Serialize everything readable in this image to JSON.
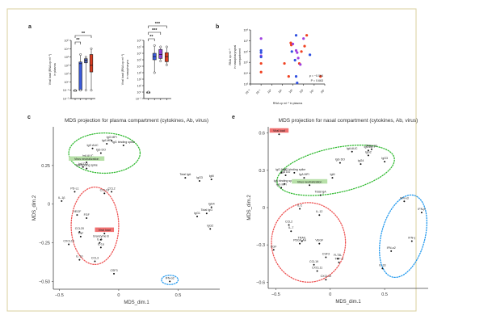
{
  "figure": {
    "border_color": "#d8cf9c",
    "panels": {
      "a": {
        "label": "a"
      },
      "b": {
        "label": "b"
      },
      "c": {
        "label": "c"
      },
      "e": {
        "label": "e"
      }
    }
  },
  "chart_data": [
    {
      "id": "a1",
      "type": "box",
      "ylabel": "Viral load (RNA cp ml⁻¹) in plasma",
      "yscale": "log10",
      "ylim_exp": [
        -2,
        5
      ],
      "ytick_labels": [
        "10⁻²",
        "10⁻¹",
        "10⁰",
        "10¹",
        "10²",
        "10³",
        "10⁴",
        "10⁵"
      ],
      "groups": [
        {
          "color": "#888888",
          "median_exp": -1,
          "q1_exp": -1,
          "q3_exp": -1,
          "min_exp": -1,
          "max_exp": -1
        },
        {
          "color": "#3b5bdb",
          "median_exp": 2.2,
          "q1_exp": -1,
          "q3_exp": 2.4,
          "min_exp": -1,
          "max_exp": 3.3
        },
        {
          "color": "#4a5aa8",
          "median_exp": 2.6,
          "q1_exp": 2.3,
          "q3_exp": 2.8,
          "min_exp": -1,
          "max_exp": 3
        },
        {
          "color": "#d93b1f",
          "median_exp": 2,
          "q1_exp": 1.2,
          "q3_exp": 3.3,
          "min_exp": -1,
          "max_exp": 4
        }
      ],
      "significance": [
        {
          "from": 0,
          "to": 1,
          "label": "**"
        },
        {
          "from": 0,
          "to": 3,
          "label": "**"
        }
      ]
    },
    {
      "id": "a2",
      "type": "box",
      "ylabel": "Viral load (RNA cp ml⁻¹) in nasopharynx",
      "yscale": "log10",
      "ylim_exp": [
        -1,
        8
      ],
      "ytick_labels": [
        "10⁻¹",
        "10⁰",
        "10¹",
        "10²",
        "10³",
        "10⁴",
        "10⁵",
        "10⁶",
        "10⁷",
        "10⁸"
      ],
      "groups": [
        {
          "color": "#888888",
          "median_exp": 0,
          "q1_exp": 0,
          "q3_exp": 0,
          "min_exp": 0,
          "max_exp": 0
        },
        {
          "color": "#3b5bdb",
          "median_exp": 5.5,
          "q1_exp": 5,
          "q3_exp": 6,
          "min_exp": 3,
          "max_exp": 7.2
        },
        {
          "color": "#8a3fd9",
          "median_exp": 5.8,
          "q1_exp": 5.2,
          "q3_exp": 6.6,
          "min_exp": 4.8,
          "max_exp": 7
        },
        {
          "color": "#d93b1f",
          "median_exp": 5.5,
          "q1_exp": 4.7,
          "q3_exp": 6.1,
          "min_exp": 4.2,
          "max_exp": 7
        }
      ],
      "significance": [
        {
          "from": 0,
          "to": 1,
          "label": "**"
        },
        {
          "from": 0,
          "to": 2,
          "label": "***"
        },
        {
          "from": 0,
          "to": 3,
          "label": "***"
        }
      ]
    },
    {
      "id": "b",
      "type": "scatter",
      "xlabel": "RNA cp ml⁻¹ in plasma",
      "ylabel": "RNA cp ml⁻¹ in nasopharyngeal compartment",
      "xscale": "log10",
      "yscale": "log10",
      "xlim_exp": [
        -2,
        5
      ],
      "ylim_exp": [
        3,
        8
      ],
      "xtick_labels": [
        "10⁻²",
        "10⁻¹",
        "10⁰",
        "10¹",
        "10²",
        "10³",
        "10⁴",
        "10⁵"
      ],
      "ytick_labels": [
        "10³",
        "10⁴",
        "10⁵",
        "10⁶",
        "10⁷",
        "10⁸"
      ],
      "annotation": [
        "ρ = −0.094",
        "P = 0.663"
      ],
      "points": [
        {
          "x": -1,
          "y": 7.2,
          "c": "#a040e0"
        },
        {
          "x": -1,
          "y": 6.1,
          "c": "#3050e0"
        },
        {
          "x": -1,
          "y": 5.9,
          "c": "#3050e0"
        },
        {
          "x": -1,
          "y": 5.6,
          "c": "#a040e0"
        },
        {
          "x": -1,
          "y": 5.5,
          "c": "#3050e0"
        },
        {
          "x": -1,
          "y": 4.9,
          "c": "#f04020"
        },
        {
          "x": -1,
          "y": 4.1,
          "c": "#f04020"
        },
        {
          "x": 1.2,
          "y": 4.9,
          "c": "#f04020"
        },
        {
          "x": 1.6,
          "y": 3.7,
          "c": "#f04020"
        },
        {
          "x": 1.8,
          "y": 6.8,
          "c": "#f04020"
        },
        {
          "x": 1.85,
          "y": 6.6,
          "c": "#f04020"
        },
        {
          "x": 1.9,
          "y": 6.0,
          "c": "#3050e0"
        },
        {
          "x": 2.0,
          "y": 6.7,
          "c": "#a040e0"
        },
        {
          "x": 2.2,
          "y": 5.2,
          "c": "#3050e0"
        },
        {
          "x": 2.3,
          "y": 6.1,
          "c": "#a040e0"
        },
        {
          "x": 2.3,
          "y": 7.5,
          "c": "#3050e0"
        },
        {
          "x": 2.4,
          "y": 5.9,
          "c": "#a040e0"
        },
        {
          "x": 2.3,
          "y": 3.7,
          "c": "#3050e0"
        },
        {
          "x": 2.4,
          "y": 3.1,
          "c": "#3050e0"
        },
        {
          "x": 2.5,
          "y": 5.4,
          "c": "#a040e0"
        },
        {
          "x": 2.6,
          "y": 4.9,
          "c": "#f04020"
        },
        {
          "x": 2.7,
          "y": 4.8,
          "c": "#a040e0"
        },
        {
          "x": 2.8,
          "y": 6.0,
          "c": "#f04020"
        },
        {
          "x": 3.0,
          "y": 7.2,
          "c": "#a040e0"
        },
        {
          "x": 3.1,
          "y": 6.5,
          "c": "#f04020"
        },
        {
          "x": 3.3,
          "y": 7.5,
          "c": "#f04020"
        },
        {
          "x": 3.6,
          "y": 5.7,
          "c": "#3050e0"
        },
        {
          "x": 4.6,
          "y": 3.7,
          "c": "#f04020"
        }
      ]
    },
    {
      "id": "c",
      "type": "scatter",
      "title": "MDS projection for plasma compartment (cytokines, Ab, virus)",
      "xlabel": "MDS_dim.1",
      "ylabel": "MDS_dim.2",
      "xlim": [
        -0.55,
        0.85
      ],
      "ylim": [
        -0.55,
        0.5
      ],
      "xticks": [
        -0.5,
        0,
        0.5
      ],
      "xtick_labels": [
        "−0.5",
        "0",
        "0.5"
      ],
      "yticks": [
        -0.5,
        -0.25,
        0,
        0.25
      ],
      "ytick_labels": [
        "−0.50",
        "−0.25",
        "0",
        "0.25"
      ],
      "points": [
        {
          "label": "IgA MFI",
          "x": -0.1,
          "y": 0.39
        },
        {
          "label": "IgG MFI",
          "x": -0.06,
          "y": 0.41
        },
        {
          "label": "IgG binding spike",
          "x": 0.04,
          "y": 0.38
        },
        {
          "label": "IgG AUC",
          "x": -0.22,
          "y": 0.36
        },
        {
          "label": "IgG DO",
          "x": -0.15,
          "y": 0.33
        },
        {
          "label": "IgA AUC",
          "x": -0.26,
          "y": 0.29
        },
        {
          "label": "Virus neutralization",
          "x": -0.27,
          "y": 0.27,
          "highlight": "#b7e0a8"
        },
        {
          "label": "IgA DO",
          "x": -0.3,
          "y": 0.24
        },
        {
          "label": "IgA binding spike",
          "x": -0.27,
          "y": 0.23
        },
        {
          "label": "Total IgA",
          "x": 0.56,
          "y": 0.17
        },
        {
          "label": "IgG3",
          "x": 0.68,
          "y": 0.15
        },
        {
          "label": "IgM",
          "x": 0.78,
          "y": 0.16
        },
        {
          "label": "PD-L1",
          "x": -0.37,
          "y": 0.08
        },
        {
          "label": "CCL2",
          "x": -0.06,
          "y": 0.08
        },
        {
          "label": "CCL19",
          "x": -0.12,
          "y": 0.07
        },
        {
          "label": "IL-1β",
          "x": -0.48,
          "y": 0.02
        },
        {
          "label": "IgG4",
          "x": 0.78,
          "y": -0.02
        },
        {
          "label": "Total IgG",
          "x": 0.74,
          "y": -0.06
        },
        {
          "label": "IgG1",
          "x": 0.66,
          "y": -0.08
        },
        {
          "label": "VEGF",
          "x": -0.35,
          "y": -0.07
        },
        {
          "label": "FGF",
          "x": -0.27,
          "y": -0.09
        },
        {
          "label": "IgG2",
          "x": 0.77,
          "y": -0.16
        },
        {
          "label": "CCL20",
          "x": -0.33,
          "y": -0.18
        },
        {
          "label": "TNF",
          "x": -0.32,
          "y": -0.21
        },
        {
          "label": "Viral load",
          "x": -0.12,
          "y": -0.19,
          "highlight": "#f07070"
        },
        {
          "label": "Granzyme B",
          "x": -0.15,
          "y": -0.23
        },
        {
          "label": "IL-6",
          "x": -0.16,
          "y": -0.25
        },
        {
          "label": "IL-1α",
          "x": -0.15,
          "y": -0.28
        },
        {
          "label": "CXCL10",
          "x": -0.42,
          "y": -0.26
        },
        {
          "label": "IL-10",
          "x": -0.33,
          "y": -0.36
        },
        {
          "label": "CCL3",
          "x": -0.2,
          "y": -0.37
        },
        {
          "label": "CSF3",
          "x": -0.04,
          "y": -0.45
        },
        {
          "label": "IFN-α2",
          "x": 0.43,
          "y": -0.5
        }
      ],
      "ellipses": [
        {
          "color": "#33bb33",
          "cx": -0.12,
          "cy": 0.33,
          "rx": 0.3,
          "ry": 0.13
        },
        {
          "color": "#ee5555",
          "cx": -0.2,
          "cy": -0.14,
          "rx": 0.2,
          "ry": 0.25
        },
        {
          "color": "#2299ee",
          "cx": 0.43,
          "cy": -0.49,
          "rx": 0.07,
          "ry": 0.03
        }
      ]
    },
    {
      "id": "e",
      "type": "scatter",
      "title": "MDS projection for nasal compartment (cytokines, Ab, virus)",
      "xlabel": "MDS_dim.1",
      "ylabel": "MDS_dim.2",
      "xlim": [
        -0.57,
        0.9
      ],
      "ylim": [
        -0.65,
        0.65
      ],
      "xticks": [
        -0.5,
        0,
        0.5
      ],
      "xtick_labels": [
        "−0.5",
        "0",
        "0.5"
      ],
      "yticks": [
        -0.6,
        -0.3,
        0,
        0.3,
        0.6
      ],
      "ytick_labels": [
        "−0.6",
        "−0.3",
        "0",
        "0.3",
        "0.6"
      ],
      "points": [
        {
          "label": "Viral load",
          "x": -0.47,
          "y": 0.59,
          "highlight": "#f07070"
        },
        {
          "label": "IgA AUC",
          "x": 0.2,
          "y": 0.45
        },
        {
          "label": "IgG1/a",
          "x": 0.35,
          "y": 0.46
        },
        {
          "label": "Total IgG",
          "x": 0.38,
          "y": 0.47
        },
        {
          "label": "IgG2",
          "x": 0.35,
          "y": 0.42
        },
        {
          "label": "IgG DO",
          "x": 0.09,
          "y": 0.36
        },
        {
          "label": "IgG4",
          "x": 0.28,
          "y": 0.35
        },
        {
          "label": "IgG3",
          "x": 0.5,
          "y": 0.37
        },
        {
          "label": "IgG AUC",
          "x": -0.45,
          "y": 0.28
        },
        {
          "label": "IgG binding spike",
          "x": -0.33,
          "y": 0.28
        },
        {
          "label": "IgA DO",
          "x": -0.41,
          "y": 0.26
        },
        {
          "label": "IgA MFI",
          "x": -0.24,
          "y": 0.24
        },
        {
          "label": "IgM",
          "x": 0.02,
          "y": 0.24
        },
        {
          "label": "IgA binding spike",
          "x": -0.42,
          "y": 0.19
        },
        {
          "label": "Virus neutralization",
          "x": -0.19,
          "y": 0.18,
          "highlight": "#b7e0a8"
        },
        {
          "label": "IgG MFI",
          "x": -0.45,
          "y": 0.16
        },
        {
          "label": "Total IgA",
          "x": -0.09,
          "y": 0.1
        },
        {
          "label": "IFN-λ3",
          "x": 0.68,
          "y": 0.05
        },
        {
          "label": "IL-2",
          "x": -0.28,
          "y": -0.01
        },
        {
          "label": "IL-12",
          "x": -0.1,
          "y": -0.06
        },
        {
          "label": "IFN-β",
          "x": 0.84,
          "y": -0.04
        },
        {
          "label": "CCL2",
          "x": -0.38,
          "y": -0.14
        },
        {
          "label": "IL-7",
          "x": -0.36,
          "y": -0.19
        },
        {
          "label": "TRAIL",
          "x": -0.26,
          "y": -0.27
        },
        {
          "label": "PDGF-AA",
          "x": -0.28,
          "y": -0.29
        },
        {
          "label": "VEGF",
          "x": -0.1,
          "y": -0.29
        },
        {
          "label": "IFN-γ",
          "x": 0.75,
          "y": -0.27
        },
        {
          "label": "EGF",
          "x": -0.52,
          "y": -0.34
        },
        {
          "label": "CSF3",
          "x": -0.04,
          "y": -0.4
        },
        {
          "label": "FLT3L",
          "x": 0.07,
          "y": -0.41
        },
        {
          "label": "TGF-α",
          "x": 0.08,
          "y": -0.44
        },
        {
          "label": "IFN-α2",
          "x": 0.56,
          "y": -0.35
        },
        {
          "label": "CCL19",
          "x": -0.15,
          "y": -0.46
        },
        {
          "label": "CXCL11",
          "x": -0.12,
          "y": -0.51
        },
        {
          "label": "IL-33",
          "x": 0.48,
          "y": -0.49
        },
        {
          "label": "CXCL10",
          "x": -0.04,
          "y": -0.58
        }
      ],
      "ellipses": [
        {
          "color": "#33bb33",
          "cx": 0.05,
          "cy": 0.3,
          "rx": 0.55,
          "ry": 0.18,
          "rot": -12
        },
        {
          "color": "#ee5555",
          "cx": -0.2,
          "cy": -0.28,
          "rx": 0.34,
          "ry": 0.32
        },
        {
          "color": "#2299ee",
          "cx": 0.67,
          "cy": -0.23,
          "rx": 0.2,
          "ry": 0.34,
          "rot": 15
        }
      ]
    }
  ]
}
